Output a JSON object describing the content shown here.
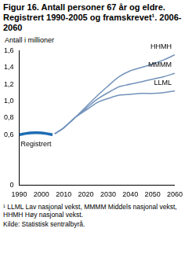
{
  "chart_data": {
    "type": "line",
    "title": "Figur 16. Antall personer 67 år og eldre. Registrert 1990-2005 og framskrevet¹. 2006-2060",
    "y_label": "Antall i millioner",
    "footnote": "¹ LLML Lav nasjonal vekst, MMMM Middels nasjonal vekst, HHMH Høy nasjonal vekst.",
    "source": "Kilde: Statistisk sentralbyrå.",
    "x": [
      1990,
      1995,
      2000,
      2005,
      2006,
      2010,
      2015,
      2020,
      2025,
      2030,
      2035,
      2040,
      2045,
      2050,
      2055,
      2060
    ],
    "series": [
      {
        "name": "Registrert",
        "color": "#1f6cb4",
        "line_style": "thick",
        "values": [
          0.6,
          0.62,
          0.62,
          0.6,
          null,
          null,
          null,
          null,
          null,
          null,
          null,
          null,
          null,
          null,
          null,
          null
        ]
      },
      {
        "name": "HHMH",
        "color": "#7393bb",
        "line_style": "solid",
        "values": [
          null,
          null,
          null,
          null,
          0.61,
          0.68,
          0.8,
          0.93,
          1.06,
          1.18,
          1.29,
          1.36,
          1.4,
          1.44,
          1.49,
          1.55
        ]
      },
      {
        "name": "MMMM",
        "color": "#7393bb",
        "line_style": "solid",
        "values": [
          null,
          null,
          null,
          null,
          0.61,
          0.68,
          0.8,
          0.91,
          1.02,
          1.1,
          1.17,
          1.2,
          1.23,
          1.26,
          1.29,
          1.33
        ]
      },
      {
        "name": "LLML",
        "color": "#7393bb",
        "line_style": "solid",
        "values": [
          null,
          null,
          null,
          null,
          0.61,
          0.68,
          0.8,
          0.89,
          0.98,
          1.03,
          1.07,
          1.08,
          1.09,
          1.09,
          1.1,
          1.12
        ]
      }
    ],
    "xlim": [
      1990,
      2060
    ],
    "xticks": [
      1990,
      2000,
      2010,
      2020,
      2030,
      2040,
      2050,
      2060
    ],
    "ylim": [
      0,
      1.6
    ],
    "yticks": [
      0,
      {
        "value": 0.6,
        "label": "0,6"
      },
      {
        "value": 0.8,
        "label": "0,8"
      },
      {
        "value": 1.0,
        "label": "1,0"
      },
      {
        "value": 1.2,
        "label": "1,2"
      },
      {
        "value": 1.4,
        "label": "1,4"
      },
      {
        "value": 1.6,
        "label": "1,6"
      }
    ],
    "grid": false
  }
}
